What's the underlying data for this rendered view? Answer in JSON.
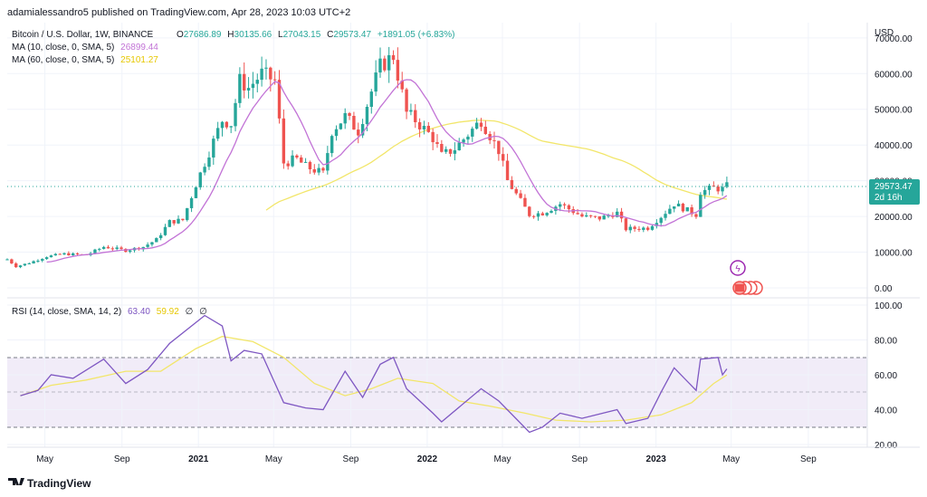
{
  "header": {
    "publisher_line": "adamialessandro5 published on TradingView.com, Apr 28, 2023 10:03 UTC+2",
    "symbol_line": "Bitcoin / U.S. Dollar, 1W, BINANCE",
    "ohlc": {
      "o_label": "O",
      "o": "27686.89",
      "h_label": "H",
      "h": "30135.66",
      "l_label": "L",
      "l": "27043.15",
      "c_label": "C",
      "c": "29573.47",
      "change": "+1891.05 (+6.83%)"
    },
    "ma10": {
      "label": "MA (10, close, 0, SMA, 5)",
      "value": "26899.44",
      "color": "#c273d6"
    },
    "ma60": {
      "label": "MA (60, close, 0, SMA, 5)",
      "value": "25101.27",
      "color": "#f2e66a"
    },
    "rsi": {
      "label": "RSI (14, close, SMA, 14, 2)",
      "value": "63.40",
      "ma_value": "59.92",
      "extra1": "∅",
      "extra2": "∅"
    }
  },
  "price_axis": {
    "currency": "USD",
    "ticks": [
      "70000.00",
      "60000.00",
      "50000.00",
      "40000.00",
      "30000.00",
      "20000.00",
      "10000.00",
      "0.00"
    ],
    "current_price": "29573.47",
    "countdown": "2d 16h"
  },
  "rsi_axis": {
    "ticks": [
      "100.00",
      "80.00",
      "60.00",
      "40.00",
      "20.00"
    ]
  },
  "time_axis": {
    "labels": [
      "May",
      "Sep",
      "2021",
      "May",
      "Sep",
      "2022",
      "May",
      "Sep",
      "2023",
      "May",
      "Sep"
    ]
  },
  "footer": {
    "brand": "TradingView"
  },
  "colors": {
    "up": "#26a69a",
    "down": "#ef5350",
    "ma10": "#c273d6",
    "ma60": "#f2e66a",
    "rsi_line": "#7e57c2",
    "rsi_band": "#ede7f6",
    "last_price_line": "#26a69a",
    "price_tag": "#26a69a"
  },
  "chart_data": [
    {
      "type": "candlestick",
      "title": "Bitcoin / U.S. Dollar, 1W, BINANCE",
      "ylim": [
        0,
        73000
      ],
      "x_range": [
        "2020-03-02",
        "2023-12-04"
      ],
      "series_close_weekly": [
        [
          "2020-03-02",
          8000
        ],
        [
          "2020-03-16",
          6000
        ],
        [
          "2020-04-06",
          7000
        ],
        [
          "2020-05-04",
          8800
        ],
        [
          "2020-06-01",
          9500
        ],
        [
          "2020-07-06",
          9200
        ],
        [
          "2020-08-03",
          11500
        ],
        [
          "2020-09-07",
          10500
        ],
        [
          "2020-10-05",
          11500
        ],
        [
          "2020-10-26",
          13500
        ],
        [
          "2020-11-16",
          18500
        ],
        [
          "2020-12-07",
          19000
        ],
        [
          "2020-12-28",
          29000
        ],
        [
          "2021-01-11",
          35000
        ],
        [
          "2021-02-08",
          47000
        ],
        [
          "2021-02-22",
          46000
        ],
        [
          "2021-03-08",
          58000
        ],
        [
          "2021-03-22",
          56000
        ],
        [
          "2021-04-12",
          60000
        ],
        [
          "2021-05-03",
          58000
        ],
        [
          "2021-05-17",
          35000
        ],
        [
          "2021-06-07",
          36000
        ],
        [
          "2021-06-21",
          34000
        ],
        [
          "2021-07-19",
          32000
        ],
        [
          "2021-08-02",
          44000
        ],
        [
          "2021-08-23",
          48000
        ],
        [
          "2021-09-13",
          44000
        ],
        [
          "2021-10-04",
          55000
        ],
        [
          "2021-10-18",
          62000
        ],
        [
          "2021-11-08",
          65000
        ],
        [
          "2021-11-29",
          49000
        ],
        [
          "2021-12-13",
          47000
        ],
        [
          "2022-01-10",
          42000
        ],
        [
          "2022-01-24",
          37000
        ],
        [
          "2022-02-14",
          39000
        ],
        [
          "2022-03-28",
          47000
        ],
        [
          "2022-04-25",
          38500
        ],
        [
          "2022-05-09",
          30000
        ],
        [
          "2022-06-13",
          20500
        ],
        [
          "2022-07-04",
          21000
        ],
        [
          "2022-08-01",
          23500
        ],
        [
          "2022-09-05",
          20000
        ],
        [
          "2022-10-03",
          19500
        ],
        [
          "2022-10-31",
          21000
        ],
        [
          "2022-11-14",
          16500
        ],
        [
          "2022-12-19",
          16800
        ],
        [
          "2023-01-09",
          20000
        ],
        [
          "2023-01-30",
          23500
        ],
        [
          "2023-03-06",
          20500
        ],
        [
          "2023-03-13",
          26900
        ],
        [
          "2023-04-03",
          28000
        ],
        [
          "2023-04-17",
          27700
        ],
        [
          "2023-04-24",
          29573
        ]
      ]
    },
    {
      "type": "line",
      "title": "RSI (14, close, SMA, 14, 2)",
      "ylim": [
        20,
        100
      ],
      "bands": [
        30,
        50,
        70
      ],
      "series": [
        {
          "name": "RSI",
          "points": [
            [
              "2020-03-23",
              48
            ],
            [
              "2020-04-20",
              51
            ],
            [
              "2020-05-11",
              60
            ],
            [
              "2020-06-15",
              58
            ],
            [
              "2020-08-03",
              69
            ],
            [
              "2020-09-07",
              55
            ],
            [
              "2020-10-12",
              63
            ],
            [
              "2020-11-16",
              78
            ],
            [
              "2020-12-28",
              90
            ],
            [
              "2021-01-11",
              94
            ],
            [
              "2021-02-08",
              88
            ],
            [
              "2021-02-22",
              68
            ],
            [
              "2021-03-15",
              74
            ],
            [
              "2021-04-12",
              72
            ],
            [
              "2021-05-17",
              44
            ],
            [
              "2021-06-21",
              41
            ],
            [
              "2021-07-19",
              40
            ],
            [
              "2021-08-23",
              62
            ],
            [
              "2021-09-20",
              47
            ],
            [
              "2021-10-18",
              66
            ],
            [
              "2021-11-08",
              70
            ],
            [
              "2021-11-29",
              52
            ],
            [
              "2022-01-10",
              38
            ],
            [
              "2022-01-24",
              33
            ],
            [
              "2022-03-28",
              52
            ],
            [
              "2022-04-25",
              45
            ],
            [
              "2022-06-13",
              27
            ],
            [
              "2022-07-04",
              30
            ],
            [
              "2022-08-01",
              38
            ],
            [
              "2022-09-05",
              35
            ],
            [
              "2022-10-31",
              40
            ],
            [
              "2022-11-14",
              32
            ],
            [
              "2022-12-19",
              35
            ],
            [
              "2023-01-09",
              50
            ],
            [
              "2023-01-30",
              64
            ],
            [
              "2023-03-06",
              51
            ],
            [
              "2023-03-13",
              69
            ],
            [
              "2023-04-10",
              70
            ],
            [
              "2023-04-17",
              60
            ],
            [
              "2023-04-24",
              63.4
            ]
          ]
        },
        {
          "name": "RSI-based MA",
          "points": [
            [
              "2020-03-23",
              48
            ],
            [
              "2020-05-11",
              54
            ],
            [
              "2020-07-06",
              57
            ],
            [
              "2020-09-07",
              62
            ],
            [
              "2020-11-02",
              62
            ],
            [
              "2020-12-28",
              75
            ],
            [
              "2021-02-08",
              82
            ],
            [
              "2021-03-29",
              79
            ],
            [
              "2021-05-17",
              70
            ],
            [
              "2021-07-05",
              55
            ],
            [
              "2021-08-23",
              48
            ],
            [
              "2021-10-04",
              52
            ],
            [
              "2021-11-15",
              58
            ],
            [
              "2022-01-10",
              55
            ],
            [
              "2022-02-21",
              45
            ],
            [
              "2022-04-11",
              42
            ],
            [
              "2022-06-06",
              38
            ],
            [
              "2022-07-25",
              34
            ],
            [
              "2022-09-19",
              33
            ],
            [
              "2022-11-14",
              34
            ],
            [
              "2023-01-09",
              37
            ],
            [
              "2023-02-27",
              44
            ],
            [
              "2023-04-03",
              55
            ],
            [
              "2023-04-24",
              59.92
            ]
          ]
        }
      ]
    }
  ]
}
